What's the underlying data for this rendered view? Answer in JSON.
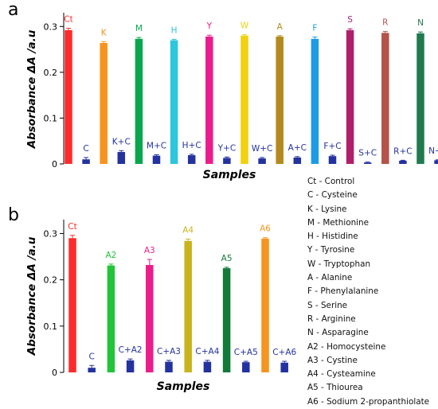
{
  "panels": {
    "a": "a",
    "b": "b"
  },
  "legend": [
    "Ct - Control",
    "C - Cysteine",
    "K - Lysine",
    "M - Methionine",
    "H - Histidine",
    "Y - Tyrosine",
    "W - Tryptophan",
    "A - Alanine",
    "F - Phenylalanine",
    "S - Serine",
    "R - Arginine",
    "N - Asparagine",
    "A2 - Homocysteine",
    "A3 - Cystine",
    "A4 - Cysteamine",
    "A5 - Thiourea",
    "A6 - Sodium 2-propanthiolate"
  ],
  "chart_data": [
    {
      "type": "bar",
      "panel": "a",
      "xlabel": "Samples",
      "ylabel": "Absorbance ΔA /a.u",
      "ylim": [
        0,
        0.33
      ],
      "yticks": [
        0,
        0.1,
        0.2,
        0.3
      ],
      "ytick_labels": [
        "0",
        "0.1",
        "0.2",
        "0.3"
      ],
      "bars": [
        {
          "label": "Ct",
          "value": 0.292,
          "err": 0.004,
          "color": "#ff2b2b"
        },
        {
          "label": "C",
          "value": 0.01,
          "err": 0.004,
          "color": "#2432a0"
        },
        {
          "label": "K",
          "value": 0.264,
          "err": 0.003,
          "color": "#f7941d"
        },
        {
          "label": "K+C",
          "value": 0.026,
          "err": 0.003,
          "color": "#2432a0"
        },
        {
          "label": "M",
          "value": 0.273,
          "err": 0.003,
          "color": "#0aa64f"
        },
        {
          "label": "M+C",
          "value": 0.018,
          "err": 0.002,
          "color": "#2432a0"
        },
        {
          "label": "H",
          "value": 0.27,
          "err": 0.002,
          "color": "#2cc6dd"
        },
        {
          "label": "H+C",
          "value": 0.019,
          "err": 0.002,
          "color": "#2432a0"
        },
        {
          "label": "Y",
          "value": 0.278,
          "err": 0.003,
          "color": "#ec1c8c"
        },
        {
          "label": "Y+C",
          "value": 0.013,
          "err": 0.002,
          "color": "#2432a0"
        },
        {
          "label": "W",
          "value": 0.28,
          "err": 0.002,
          "color": "#f2d10e"
        },
        {
          "label": "W+C",
          "value": 0.012,
          "err": 0.002,
          "color": "#2432a0"
        },
        {
          "label": "A",
          "value": 0.278,
          "err": 0.002,
          "color": "#b38a1c"
        },
        {
          "label": "A+C",
          "value": 0.014,
          "err": 0.002,
          "color": "#2432a0"
        },
        {
          "label": "F",
          "value": 0.273,
          "err": 0.004,
          "color": "#1e9be5"
        },
        {
          "label": "F+C",
          "value": 0.017,
          "err": 0.002,
          "color": "#2432a0"
        },
        {
          "label": "S",
          "value": 0.292,
          "err": 0.003,
          "color": "#b01f6c"
        },
        {
          "label": "S+C",
          "value": 0.003,
          "err": 0.001,
          "color": "#2432a0"
        },
        {
          "label": "R",
          "value": 0.286,
          "err": 0.003,
          "color": "#b5524a"
        },
        {
          "label": "R+C",
          "value": 0.007,
          "err": 0.001,
          "color": "#2432a0"
        },
        {
          "label": "N",
          "value": 0.285,
          "err": 0.003,
          "color": "#1f7a50"
        },
        {
          "label": "N+C",
          "value": 0.008,
          "err": 0.001,
          "color": "#2432a0"
        }
      ]
    },
    {
      "type": "bar",
      "panel": "b",
      "xlabel": "Samples",
      "ylabel": "Absorbance ΔA /a.u",
      "ylim": [
        0,
        0.33
      ],
      "yticks": [
        0,
        0.1,
        0.2,
        0.3
      ],
      "ytick_labels": [
        "0",
        "0.1",
        "0.2",
        "0.3"
      ],
      "bars": [
        {
          "label": "Ct",
          "value": 0.29,
          "err": 0.006,
          "color": "#ff2b2b"
        },
        {
          "label": "C",
          "value": 0.01,
          "err": 0.005,
          "color": "#2432a0"
        },
        {
          "label": "A2",
          "value": 0.231,
          "err": 0.003,
          "color": "#22c43a"
        },
        {
          "label": "C+A2",
          "value": 0.026,
          "err": 0.003,
          "color": "#2432a0"
        },
        {
          "label": "A3",
          "value": 0.232,
          "err": 0.012,
          "color": "#ec1c8c"
        },
        {
          "label": "C+A3",
          "value": 0.023,
          "err": 0.003,
          "color": "#2432a0"
        },
        {
          "label": "A4",
          "value": 0.284,
          "err": 0.004,
          "color": "#c8b51e"
        },
        {
          "label": "C+A4",
          "value": 0.023,
          "err": 0.003,
          "color": "#2432a0"
        },
        {
          "label": "A5",
          "value": 0.225,
          "err": 0.002,
          "color": "#137a3a"
        },
        {
          "label": "C+A5",
          "value": 0.022,
          "err": 0.002,
          "color": "#2432a0"
        },
        {
          "label": "A6",
          "value": 0.289,
          "err": 0.002,
          "color": "#f7941d"
        },
        {
          "label": "C+A6",
          "value": 0.021,
          "err": 0.003,
          "color": "#2432a0"
        }
      ]
    }
  ]
}
